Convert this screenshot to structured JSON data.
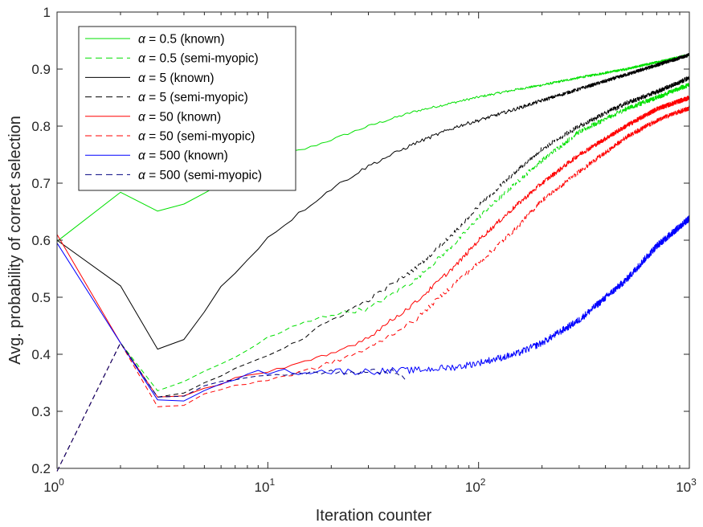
{
  "chart_data": {
    "type": "line",
    "title": "",
    "xlabel": "Iteration counter",
    "ylabel": "Avg. probability of correct selection",
    "xscale": "log",
    "xlim": [
      1,
      1000
    ],
    "ylim": [
      0.2,
      1
    ],
    "xticks": [
      {
        "value": 1,
        "base": "10",
        "exp": "0"
      },
      {
        "value": 10,
        "base": "10",
        "exp": "1"
      },
      {
        "value": 100,
        "base": "10",
        "exp": "2"
      },
      {
        "value": 1000,
        "base": "10",
        "exp": "3"
      }
    ],
    "yticks": [
      {
        "value": 0.2,
        "label": "0.2"
      },
      {
        "value": 0.3,
        "label": "0.3"
      },
      {
        "value": 0.4,
        "label": "0.4"
      },
      {
        "value": 0.5,
        "label": "0.5"
      },
      {
        "value": 0.6,
        "label": "0.6"
      },
      {
        "value": 0.7,
        "label": "0.7"
      },
      {
        "value": 0.8,
        "label": "0.8"
      },
      {
        "value": 0.9,
        "label": "0.9"
      },
      {
        "value": 1,
        "label": "1"
      }
    ],
    "legend_position": "top-left",
    "series": [
      {
        "symbol": "α",
        "label": " = 0.5 (known)",
        "color": "#00e000",
        "dash": "solid",
        "noise": 0.002,
        "x": [
          1,
          2,
          3,
          4,
          5,
          6,
          8,
          10,
          15,
          20,
          30,
          50,
          80,
          100,
          150,
          200,
          300,
          500,
          700,
          1000
        ],
        "y": [
          0.598,
          0.684,
          0.651,
          0.663,
          0.683,
          0.698,
          0.72,
          0.745,
          0.76,
          0.776,
          0.8,
          0.826,
          0.843,
          0.851,
          0.864,
          0.872,
          0.885,
          0.9,
          0.912,
          0.925
        ]
      },
      {
        "symbol": "α",
        "label": " = 0.5 (semi-myopic)",
        "color": "#00e000",
        "dash": "dashed",
        "noise": 0.004,
        "x": [
          1,
          2,
          3,
          4,
          5,
          6,
          8,
          10,
          15,
          20,
          30,
          50,
          80,
          100,
          150,
          200,
          300,
          500,
          700,
          1000
        ],
        "y": [
          0.195,
          0.42,
          0.336,
          0.35,
          0.37,
          0.385,
          0.405,
          0.43,
          0.455,
          0.47,
          0.48,
          0.53,
          0.6,
          0.64,
          0.7,
          0.74,
          0.79,
          0.83,
          0.85,
          0.873
        ]
      },
      {
        "symbol": "α",
        "label": " = 5 (known)",
        "color": "#000000",
        "dash": "solid",
        "noise": 0.003,
        "x": [
          1,
          2,
          3,
          4,
          5,
          6,
          8,
          10,
          15,
          20,
          30,
          50,
          80,
          100,
          150,
          200,
          300,
          500,
          700,
          1000
        ],
        "y": [
          0.6,
          0.52,
          0.409,
          0.425,
          0.475,
          0.52,
          0.565,
          0.605,
          0.655,
          0.69,
          0.73,
          0.77,
          0.8,
          0.81,
          0.83,
          0.845,
          0.865,
          0.89,
          0.907,
          0.925
        ]
      },
      {
        "symbol": "α",
        "label": " = 5 (semi-myopic)",
        "color": "#000000",
        "dash": "dashed",
        "noise": 0.004,
        "x": [
          1,
          2,
          3,
          4,
          5,
          6,
          8,
          10,
          15,
          20,
          30,
          50,
          80,
          100,
          150,
          200,
          300,
          500,
          700,
          1000
        ],
        "y": [
          0.195,
          0.42,
          0.325,
          0.33,
          0.35,
          0.365,
          0.385,
          0.4,
          0.43,
          0.46,
          0.495,
          0.55,
          0.62,
          0.66,
          0.72,
          0.76,
          0.8,
          0.84,
          0.86,
          0.885
        ]
      },
      {
        "symbol": "α",
        "label": " = 50 (known)",
        "color": "#ff0000",
        "dash": "solid",
        "noise": 0.004,
        "x": [
          1,
          2,
          3,
          4,
          5,
          6,
          8,
          10,
          15,
          20,
          30,
          50,
          80,
          100,
          150,
          200,
          300,
          500,
          700,
          1000
        ],
        "y": [
          0.61,
          0.42,
          0.325,
          0.325,
          0.343,
          0.35,
          0.365,
          0.37,
          0.385,
          0.4,
          0.43,
          0.49,
          0.56,
          0.6,
          0.66,
          0.7,
          0.75,
          0.8,
          0.83,
          0.85
        ]
      },
      {
        "symbol": "α",
        "label": " = 50 (semi-myopic)",
        "color": "#ff0000",
        "dash": "dashed",
        "noise": 0.004,
        "x": [
          1,
          2,
          3,
          4,
          5,
          6,
          8,
          10,
          15,
          20,
          30,
          50,
          80,
          100,
          150,
          200,
          300,
          500,
          700,
          1000
        ],
        "y": [
          0.195,
          0.42,
          0.308,
          0.308,
          0.33,
          0.34,
          0.35,
          0.355,
          0.37,
          0.385,
          0.41,
          0.46,
          0.53,
          0.56,
          0.62,
          0.67,
          0.72,
          0.78,
          0.81,
          0.832
        ]
      },
      {
        "symbol": "α",
        "label": " = 500 (known)",
        "color": "#0000ff",
        "dash": "solid",
        "noise": 0.006,
        "x": [
          1,
          2,
          3,
          4,
          5,
          6,
          8,
          10,
          15,
          20,
          30,
          50,
          80,
          100,
          150,
          200,
          300,
          500,
          700,
          1000
        ],
        "y": [
          0.595,
          0.42,
          0.32,
          0.32,
          0.34,
          0.352,
          0.363,
          0.37,
          0.37,
          0.37,
          0.37,
          0.372,
          0.378,
          0.385,
          0.4,
          0.42,
          0.46,
          0.53,
          0.59,
          0.638
        ]
      },
      {
        "symbol": "α",
        "label": " = 500 (semi-myopic)",
        "color": "#000080",
        "dash": "dashed",
        "noise": 0.004,
        "x": [
          1,
          2,
          3,
          4,
          5,
          6,
          8,
          10,
          12,
          15,
          20,
          25,
          30,
          40,
          45
        ],
        "y": [
          0.195,
          0.42,
          0.325,
          0.327,
          0.345,
          0.353,
          0.36,
          0.365,
          0.365,
          0.368,
          0.37,
          0.368,
          0.37,
          0.37,
          0.355
        ]
      }
    ]
  }
}
